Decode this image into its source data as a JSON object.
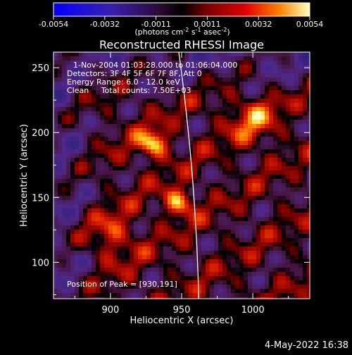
{
  "chart_data": {
    "type": "heatmap",
    "title": "Reconstructed RHESSI Image",
    "xlabel": "Heliocentric X (arcsec)",
    "ylabel": "Heliocentric Y (arcsec)",
    "xlim": [
      860,
      1040
    ],
    "ylim": [
      72,
      262
    ],
    "xticks": [
      900,
      950,
      1000
    ],
    "yticks": [
      100,
      150,
      200,
      250
    ],
    "colorbar": {
      "range": [
        -0.0054,
        0.0054
      ],
      "ticks": [
        "-0.0054",
        "-0.0032",
        "-0.0011",
        "0.0011",
        "0.0032",
        "0.0054"
      ],
      "unit_label": {
        "base": "(photons cm",
        "p1": "-2",
        "mid1": " s",
        "p2": "-1",
        "mid2": " asec",
        "p3": "-2",
        "end": ")"
      }
    },
    "annotations": [
      "1-Nov-2004 01:03:28.000 to 01:06:04.000",
      "Detectors: 3F 4F 5F 6F 7F 8F, Att 0",
      "Energy Range: 6.0 - 12.0 keV",
      "Clean     Total counts: 7.50E+03"
    ],
    "peak_label": "Position of Peak = [930,191]",
    "peak": [
      930,
      191
    ],
    "sources": [
      {
        "x": 930,
        "y": 191,
        "value": 0.0054
      },
      {
        "x": 948,
        "y": 146,
        "value": 0.0048
      },
      {
        "x": 1000,
        "y": 210,
        "value": 0.003
      },
      {
        "x": 900,
        "y": 120,
        "value": 0.0028
      }
    ],
    "limb_x": [
      948,
      962
    ],
    "limb_y": [
      262,
      72
    ]
  },
  "footer_date": "4-May-2022 16:38"
}
